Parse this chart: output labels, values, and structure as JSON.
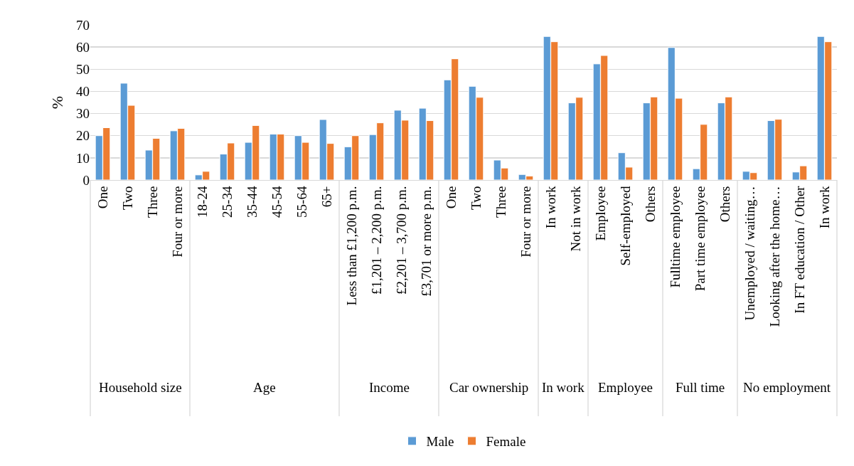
{
  "chart_data": {
    "type": "bar",
    "ylabel": "%",
    "categories": [
      "One",
      "Two",
      "Three",
      "Four or more",
      "18-24",
      "25-34",
      "35-44",
      "45-54",
      "55-64",
      "65+",
      "Less than £1,200 p.m.",
      "£1,201 – 2,200 p.m.",
      "£2,201 – 3,700 p.m.",
      "£3,701 or more p.m.",
      "One",
      "Two",
      "Three",
      "Four or more",
      "In work",
      "Not in work",
      "Employee",
      "Self-employed",
      "Others",
      "Fulltime employee",
      "Part time employee",
      "Others",
      "Unemployed / waiting…",
      "Looking after the home…",
      "In FT education / Other",
      "In work"
    ],
    "series": [
      {
        "name": "Male",
        "color": "#5b9bd5",
        "values": [
          20.0,
          43.7,
          13.5,
          22.2,
          2.3,
          11.7,
          17.0,
          20.7,
          20.0,
          27.3,
          15.0,
          20.5,
          31.5,
          32.4,
          45.2,
          42.3,
          9.0,
          2.5,
          64.8,
          34.8,
          52.4,
          12.3,
          34.8,
          59.8,
          5.1,
          34.8,
          3.9,
          26.8,
          3.6,
          64.8
        ]
      },
      {
        "name": "Female",
        "color": "#ed7d31",
        "values": [
          23.6,
          33.7,
          18.8,
          23.3,
          3.9,
          16.7,
          24.6,
          20.7,
          17.0,
          16.5,
          20.0,
          25.8,
          27.0,
          26.8,
          54.7,
          37.3,
          5.4,
          1.8,
          62.4,
          37.3,
          56.2,
          5.8,
          37.5,
          36.9,
          25.1,
          37.5,
          3.3,
          27.4,
          6.4,
          62.4
        ]
      }
    ],
    "annotations": [
      "Household size",
      "Age",
      "Income",
      "Car ownership",
      "In work",
      "Employee",
      "Full time",
      "No employment"
    ],
    "ylim": [
      0,
      70
    ],
    "yticks": [
      0,
      10,
      20,
      30,
      40,
      50,
      60,
      70
    ],
    "grid": "y",
    "legend": "bottom"
  }
}
